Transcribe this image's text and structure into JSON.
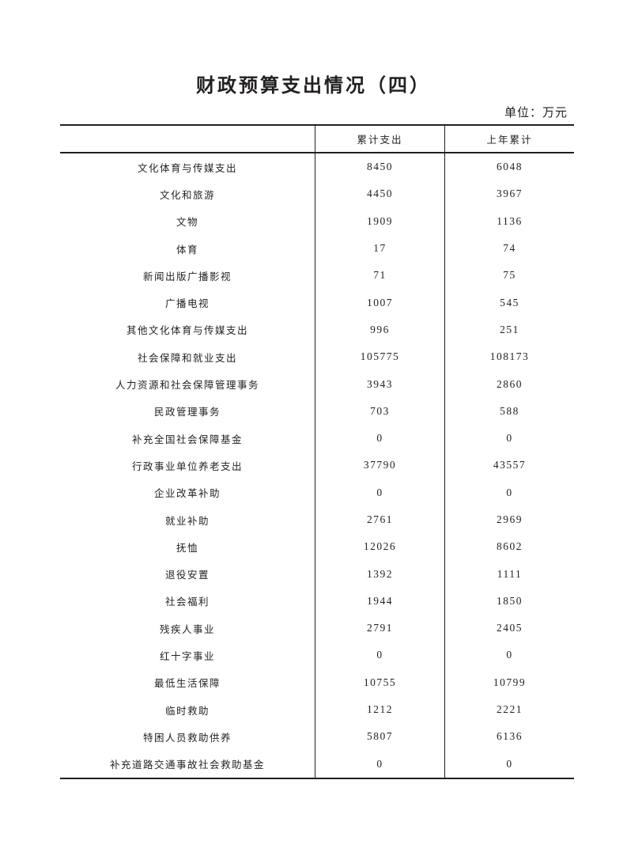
{
  "title": "财政预算支出情况（四）",
  "unit": "单位：万元",
  "table": {
    "headers": [
      "",
      "累计支出",
      "上年累计"
    ],
    "rows": [
      [
        "文化体育与传媒支出",
        "8450",
        "6048"
      ],
      [
        "文化和旅游",
        "4450",
        "3967"
      ],
      [
        "文物",
        "1909",
        "1136"
      ],
      [
        "体育",
        "17",
        "74"
      ],
      [
        "新闻出版广播影视",
        "71",
        "75"
      ],
      [
        "广播电视",
        "1007",
        "545"
      ],
      [
        "其他文化体育与传媒支出",
        "996",
        "251"
      ],
      [
        "社会保障和就业支出",
        "105775",
        "108173"
      ],
      [
        "人力资源和社会保障管理事务",
        "3943",
        "2860"
      ],
      [
        "民政管理事务",
        "703",
        "588"
      ],
      [
        "补充全国社会保障基金",
        "0",
        "0"
      ],
      [
        "行政事业单位养老支出",
        "37790",
        "43557"
      ],
      [
        "企业改革补助",
        "0",
        "0"
      ],
      [
        "就业补助",
        "2761",
        "2969"
      ],
      [
        "抚恤",
        "12026",
        "8602"
      ],
      [
        "退役安置",
        "1392",
        "1111"
      ],
      [
        "社会福利",
        "1944",
        "1850"
      ],
      [
        "残疾人事业",
        "2791",
        "2405"
      ],
      [
        "红十字事业",
        "0",
        "0"
      ],
      [
        "最低生活保障",
        "10755",
        "10799"
      ],
      [
        "临时救助",
        "1212",
        "2221"
      ],
      [
        "特困人员救助供养",
        "5807",
        "6136"
      ],
      [
        "补充道路交通事故社会救助基金",
        "0",
        "0"
      ]
    ]
  }
}
